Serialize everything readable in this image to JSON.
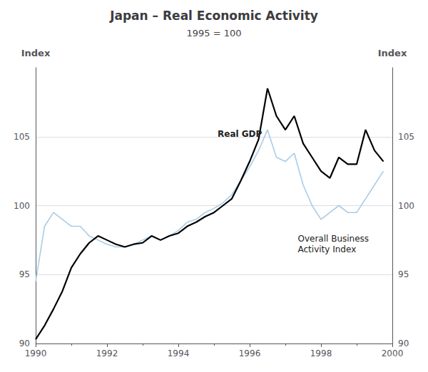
{
  "chart_data": {
    "type": "line",
    "title": "Japan – Real Economic Activity",
    "subtitle": "1995 = 100",
    "ylabel": "Index",
    "y2label": "Index",
    "x": [
      1990.0,
      1990.25,
      1990.5,
      1990.75,
      1991.0,
      1991.25,
      1991.5,
      1991.75,
      1992.0,
      1992.25,
      1992.5,
      1992.75,
      1993.0,
      1993.25,
      1993.5,
      1993.75,
      1994.0,
      1994.25,
      1994.5,
      1994.75,
      1995.0,
      1995.25,
      1995.5,
      1995.75,
      1996.0,
      1996.25,
      1996.5,
      1996.75,
      1997.0,
      1997.25,
      1997.5,
      1997.75,
      1998.0,
      1998.25,
      1998.5,
      1998.75,
      1999.0,
      1999.25,
      1999.5,
      1999.75
    ],
    "series": [
      {
        "color": "#a8cce8",
        "values": [
          94.5,
          98.5,
          99.5,
          99.0,
          98.5,
          98.5,
          97.8,
          97.5,
          97.2,
          97.0,
          97.0,
          97.2,
          97.5,
          97.8,
          97.5,
          97.8,
          98.2,
          98.8,
          99.0,
          99.5,
          99.8,
          100.2,
          100.8,
          101.8,
          102.8,
          104.0,
          105.5,
          103.5,
          103.2,
          103.8,
          101.5,
          100.0,
          99.0,
          99.5,
          100.0,
          99.5,
          99.5,
          100.5,
          101.5,
          102.5
        ]
      },
      {
        "color": "#000000",
        "values": [
          90.3,
          91.3,
          92.5,
          93.8,
          95.5,
          96.5,
          97.3,
          97.8,
          97.5,
          97.2,
          97.0,
          97.2,
          97.3,
          97.8,
          97.5,
          97.8,
          98.0,
          98.5,
          98.8,
          99.2,
          99.5,
          100.0,
          100.5,
          101.8,
          103.2,
          104.8,
          108.5,
          106.5,
          105.5,
          106.5,
          104.5,
          103.5,
          102.5,
          102.0,
          103.5,
          103.0,
          103.0,
          105.5,
          104.0,
          103.2
        ]
      }
    ],
    "annotations": [
      {
        "text": "Real GDP",
        "x": 1995.1,
        "y": 104.8
      },
      {
        "text": "Overall Business\nActivity Index",
        "x": 1997.35,
        "y": 98.0
      }
    ],
    "xlim": [
      1990,
      2000
    ],
    "xticks": [
      1990,
      1992,
      1994,
      1996,
      1998,
      2000
    ],
    "ylim": [
      90,
      110
    ],
    "yticks": [
      90,
      95,
      100,
      105
    ],
    "y2lim": [
      90,
      110
    ],
    "y2ticks": [
      90,
      95,
      100,
      105
    ],
    "grid": true
  }
}
